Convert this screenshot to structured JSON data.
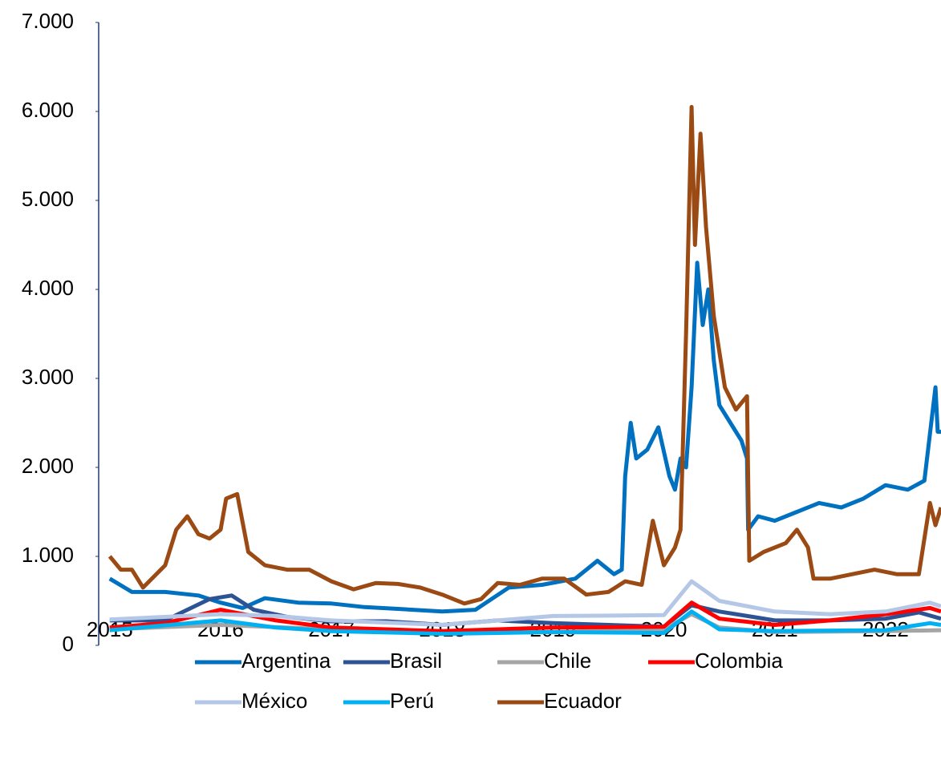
{
  "chart_data": {
    "type": "line",
    "xlim": [
      2014.9,
      2022.5
    ],
    "xticks": [
      2015,
      2016,
      2017,
      2018,
      2019,
      2020,
      2021,
      2022
    ],
    "ylim": [
      0,
      7000
    ],
    "yticks": [
      0,
      {
        "value": 1000,
        "label": "1.000"
      },
      {
        "value": 2000,
        "label": "2.000"
      },
      {
        "value": 3000,
        "label": "3.000"
      },
      {
        "value": 4000,
        "label": "4.000"
      },
      {
        "value": 5000,
        "label": "5.000"
      },
      {
        "value": 6000,
        "label": "6.000"
      },
      {
        "value": 7000,
        "label": "7.000"
      }
    ],
    "series": [
      {
        "name": "Argentina",
        "color": "#0070c0",
        "x": [
          2015,
          2015.2,
          2015.5,
          2015.8,
          2016.0,
          2016.2,
          2016.4,
          2016.7,
          2017.0,
          2017.3,
          2017.6,
          2018.0,
          2018.3,
          2018.6,
          2018.9,
          2019.2,
          2019.4,
          2019.55,
          2019.62,
          2019.65,
          2019.7,
          2019.75,
          2019.85,
          2019.95,
          2020.05,
          2020.1,
          2020.15,
          2020.2,
          2020.25,
          2020.3,
          2020.35,
          2020.4,
          2020.45,
          2020.5,
          2020.6,
          2020.7,
          2020.75,
          2020.76,
          2020.85,
          2021.0,
          2021.2,
          2021.4,
          2021.6,
          2021.8,
          2022.0,
          2022.2,
          2022.35,
          2022.45,
          2022.47,
          2022.5
        ],
        "values": [
          750,
          600,
          600,
          560,
          480,
          420,
          530,
          480,
          470,
          430,
          410,
          380,
          400,
          650,
          680,
          750,
          950,
          800,
          850,
          1900,
          2500,
          2100,
          2200,
          2450,
          1900,
          1750,
          2100,
          2000,
          2900,
          4300,
          3600,
          4000,
          3200,
          2700,
          2500,
          2300,
          2100,
          1300,
          1450,
          1400,
          1500,
          1600,
          1550,
          1650,
          1800,
          1750,
          1850,
          2900,
          2400,
          2400
        ]
      },
      {
        "name": "Brasil",
        "color": "#2e5395",
        "x": [
          2015,
          2015.5,
          2015.9,
          2016.1,
          2016.3,
          2016.6,
          2017,
          2017.5,
          2018,
          2018.5,
          2019,
          2019.5,
          2020,
          2020.25,
          2020.5,
          2021,
          2021.5,
          2022,
          2022.3,
          2022.5
        ],
        "values": [
          280,
          280,
          520,
          560,
          400,
          320,
          270,
          270,
          230,
          280,
          250,
          230,
          210,
          450,
          380,
          280,
          280,
          300,
          370,
          300
        ]
      },
      {
        "name": "Chile",
        "color": "#a5a5a5",
        "x": [
          2015,
          2016,
          2017,
          2018,
          2019,
          2020,
          2020.25,
          2020.5,
          2021,
          2022,
          2022.5
        ],
        "values": [
          180,
          230,
          180,
          140,
          150,
          180,
          350,
          200,
          150,
          160,
          170
        ]
      },
      {
        "name": "Colombia",
        "color": "#ff0000",
        "x": [
          2015,
          2015.5,
          2016,
          2016.5,
          2017,
          2018,
          2019,
          2020,
          2020.25,
          2020.5,
          2021,
          2021.5,
          2022,
          2022.4,
          2022.5
        ],
        "values": [
          200,
          250,
          400,
          280,
          200,
          160,
          200,
          210,
          480,
          300,
          230,
          280,
          350,
          420,
          380
        ]
      },
      {
        "name": "México",
        "color": "#b4c7e7",
        "x": [
          2015,
          2016,
          2016.5,
          2017,
          2018,
          2019,
          2020,
          2020.25,
          2020.5,
          2021,
          2021.5,
          2022,
          2022.4,
          2022.5
        ],
        "values": [
          290,
          350,
          330,
          280,
          230,
          330,
          340,
          720,
          500,
          380,
          350,
          380,
          480,
          440
        ]
      },
      {
        "name": "Perú",
        "color": "#00b0f0",
        "x": [
          2015,
          2016,
          2016.5,
          2017,
          2018,
          2019,
          2020,
          2020.25,
          2020.5,
          2021,
          2022,
          2022.4,
          2022.5
        ],
        "values": [
          170,
          280,
          200,
          160,
          130,
          150,
          140,
          380,
          180,
          160,
          170,
          250,
          230
        ]
      },
      {
        "name": "Ecuador",
        "color": "#9c4a14",
        "x": [
          2015,
          2015.1,
          2015.2,
          2015.3,
          2015.5,
          2015.6,
          2015.7,
          2015.8,
          2015.9,
          2016.0,
          2016.05,
          2016.15,
          2016.25,
          2016.4,
          2016.6,
          2016.8,
          2017.0,
          2017.2,
          2017.4,
          2017.6,
          2017.8,
          2018.0,
          2018.2,
          2018.35,
          2018.5,
          2018.7,
          2018.9,
          2019.1,
          2019.3,
          2019.5,
          2019.65,
          2019.8,
          2019.9,
          2020.0,
          2020.1,
          2020.15,
          2020.2,
          2020.25,
          2020.28,
          2020.33,
          2020.38,
          2020.45,
          2020.5,
          2020.55,
          2020.65,
          2020.75,
          2020.77,
          2020.9,
          2021.1,
          2021.2,
          2021.3,
          2021.35,
          2021.5,
          2021.7,
          2021.9,
          2022.1,
          2022.3,
          2022.4,
          2022.45,
          2022.5
        ],
        "values": [
          1000,
          850,
          850,
          650,
          900,
          1300,
          1450,
          1250,
          1200,
          1300,
          1650,
          1700,
          1050,
          900,
          850,
          850,
          720,
          630,
          700,
          690,
          650,
          570,
          470,
          520,
          700,
          680,
          750,
          750,
          570,
          600,
          720,
          680,
          1400,
          900,
          1100,
          1300,
          3500,
          6050,
          4500,
          5750,
          4700,
          3700,
          3300,
          2900,
          2650,
          2800,
          950,
          1050,
          1150,
          1300,
          1100,
          750,
          750,
          800,
          850,
          800,
          800,
          1600,
          1350,
          1550
        ]
      }
    ]
  }
}
